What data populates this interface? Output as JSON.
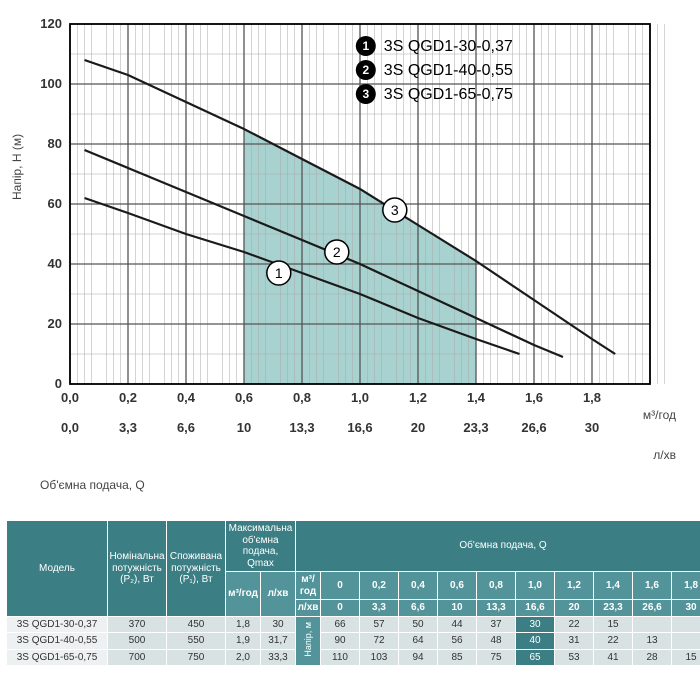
{
  "legend": {
    "items": [
      {
        "n": "1",
        "label": "3S QGD1-30-0,37"
      },
      {
        "n": "2",
        "label": "3S QGD1-40-0,55"
      },
      {
        "n": "3",
        "label": "3S QGD1-65-0,75"
      }
    ]
  },
  "chart": {
    "type": "line",
    "background_color": "#ffffff",
    "grid_color": "#a8a8a8",
    "axis_color": "#000000",
    "ylabel": "Напір, H (м)",
    "x1label_unit": "м³/год",
    "x2label_unit": "л/хв",
    "qlabel": "Об'ємна подача, Q",
    "yMin": 0,
    "yMax": 120,
    "ytick_step_major": 20,
    "ytick_step_minor": 10,
    "xMin": 0,
    "xMax": 2.0,
    "xtick_step_major": 0.2,
    "x2_ticks": [
      "0,0",
      "3,3",
      "6,6",
      "10",
      "13,3",
      "16,6",
      "20",
      "23,3",
      "26,6",
      "30"
    ],
    "x1_ticks": [
      "0,0",
      "0,2",
      "0,4",
      "0,6",
      "0,8",
      "1,0",
      "1,2",
      "1,4",
      "1,6",
      "1,8"
    ],
    "y_ticks": [
      "0",
      "20",
      "40",
      "60",
      "80",
      "100",
      "120"
    ],
    "shade": {
      "xStart": 0.6,
      "xEnd": 1.4,
      "fill": "#8bc3c0",
      "opacity": 0.75
    },
    "series": [
      {
        "name": "1",
        "color": "#1a1a1a",
        "line_width": 2.2,
        "badge_at": {
          "x": 0.72,
          "y": 37
        },
        "points": [
          {
            "x": 0.05,
            "y": 62
          },
          {
            "x": 0.2,
            "y": 57
          },
          {
            "x": 0.4,
            "y": 50
          },
          {
            "x": 0.6,
            "y": 44
          },
          {
            "x": 0.8,
            "y": 37
          },
          {
            "x": 1.0,
            "y": 30
          },
          {
            "x": 1.2,
            "y": 22
          },
          {
            "x": 1.4,
            "y": 15
          },
          {
            "x": 1.55,
            "y": 10
          }
        ]
      },
      {
        "name": "2",
        "color": "#1a1a1a",
        "line_width": 2.2,
        "badge_at": {
          "x": 0.92,
          "y": 44
        },
        "points": [
          {
            "x": 0.05,
            "y": 78
          },
          {
            "x": 0.2,
            "y": 72
          },
          {
            "x": 0.4,
            "y": 64
          },
          {
            "x": 0.6,
            "y": 56
          },
          {
            "x": 0.8,
            "y": 48
          },
          {
            "x": 1.0,
            "y": 40
          },
          {
            "x": 1.2,
            "y": 31
          },
          {
            "x": 1.4,
            "y": 22
          },
          {
            "x": 1.6,
            "y": 13
          },
          {
            "x": 1.7,
            "y": 9
          }
        ]
      },
      {
        "name": "3",
        "color": "#1a1a1a",
        "line_width": 2.2,
        "badge_at": {
          "x": 1.12,
          "y": 58
        },
        "points": [
          {
            "x": 0.05,
            "y": 108
          },
          {
            "x": 0.2,
            "y": 103
          },
          {
            "x": 0.4,
            "y": 94
          },
          {
            "x": 0.6,
            "y": 85
          },
          {
            "x": 0.8,
            "y": 75
          },
          {
            "x": 1.0,
            "y": 65
          },
          {
            "x": 1.2,
            "y": 53
          },
          {
            "x": 1.4,
            "y": 41
          },
          {
            "x": 1.6,
            "y": 28
          },
          {
            "x": 1.8,
            "y": 15
          },
          {
            "x": 1.88,
            "y": 10
          }
        ]
      }
    ]
  },
  "table": {
    "headers": {
      "model": "Модель",
      "p2": "Номінальна\nпотужність\n(P₂), Вт",
      "p1": "Споживана\nпотужність\n(P₁), Вт",
      "qmax": "Максимальна\nоб'ємна подача,\nQmax",
      "q_group": "Об'ємна подача, Q",
      "m3h": "м³/год",
      "lmin": "л/хв",
      "napor": "Напір, м"
    },
    "q_m3h_cols": [
      "0",
      "0,2",
      "0,4",
      "0,6",
      "0,8",
      "1,0",
      "1,2",
      "1,4",
      "1,6",
      "1,8"
    ],
    "q_lmin_cols": [
      "0",
      "3,3",
      "6,6",
      "10",
      "13,3",
      "16,6",
      "20",
      "23,3",
      "26,6",
      "30"
    ],
    "rows": [
      {
        "model": "3S QGD1-30-0,37",
        "p2": "370",
        "p1": "450",
        "qmax_m3h": "1,8",
        "qmax_lmin": "30",
        "H": [
          "66",
          "57",
          "50",
          "44",
          "37",
          "30",
          "22",
          "15",
          "",
          ""
        ],
        "hi_index": 5
      },
      {
        "model": "3S QGD1-40-0,55",
        "p2": "500",
        "p1": "550",
        "qmax_m3h": "1,9",
        "qmax_lmin": "31,7",
        "H": [
          "90",
          "72",
          "64",
          "56",
          "48",
          "40",
          "31",
          "22",
          "13",
          ""
        ],
        "hi_index": 5
      },
      {
        "model": "3S QGD1-65-0,75",
        "p2": "700",
        "p1": "750",
        "qmax_m3h": "2,0",
        "qmax_lmin": "33,3",
        "H": [
          "110",
          "103",
          "94",
          "85",
          "75",
          "65",
          "53",
          "41",
          "28",
          "15"
        ],
        "hi_index": 5
      }
    ]
  }
}
